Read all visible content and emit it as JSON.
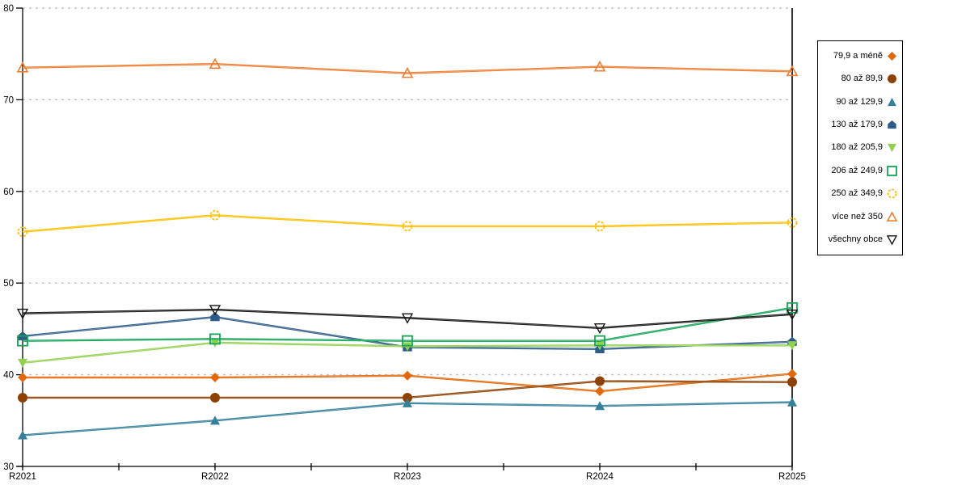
{
  "chart_data": {
    "type": "line",
    "title": "",
    "xlabel": "",
    "ylabel": "",
    "categories": [
      "R2021",
      "R2022",
      "R2023",
      "R2024",
      "R2025"
    ],
    "ylim": [
      30,
      80
    ],
    "yticks": [
      30,
      40,
      50,
      60,
      70,
      80
    ],
    "grid": "horizontal dashed",
    "legend_position": "right",
    "axis_color": "#000000",
    "gridline_color": "#b7b7b7",
    "series": [
      {
        "name": "79,9 a méně",
        "marker": "diamond-filled",
        "color": "#e2690b",
        "values": [
          39.7,
          39.7,
          39.9,
          38.2,
          40.1
        ]
      },
      {
        "name": "80 až 89,9",
        "marker": "circle-filled",
        "color": "#8e4104",
        "values": [
          37.5,
          37.5,
          37.5,
          39.3,
          39.2
        ]
      },
      {
        "name": "90 až 129,9",
        "marker": "triangle-up-filled",
        "color": "#35809b",
        "values": [
          33.4,
          35.0,
          36.9,
          36.6,
          37.0
        ]
      },
      {
        "name": "130 až 179,9",
        "marker": "pentagon-filled",
        "color": "#2e5b88",
        "values": [
          44.2,
          46.3,
          43.0,
          42.8,
          43.6
        ]
      },
      {
        "name": "180 až 205,9",
        "marker": "triangle-down-filled",
        "color": "#92d050",
        "values": [
          41.3,
          43.5,
          43.1,
          43.2,
          43.2
        ]
      },
      {
        "name": "206 až 249,9",
        "marker": "square-open",
        "color": "#12a455",
        "values": [
          43.7,
          43.9,
          43.7,
          43.7,
          47.3
        ]
      },
      {
        "name": "250 až 349,9",
        "marker": "circle-open",
        "color": "#ffc000",
        "values": [
          55.6,
          57.4,
          56.2,
          56.2,
          56.6
        ]
      },
      {
        "name": "více než 350",
        "marker": "triangle-up-open",
        "color": "#ed7d31",
        "values": [
          73.5,
          73.9,
          72.9,
          73.6,
          73.1
        ]
      },
      {
        "name": "všechny obce",
        "marker": "triangle-down-open",
        "color": "#151515",
        "values": [
          46.7,
          47.1,
          46.2,
          45.1,
          46.6
        ]
      }
    ]
  }
}
